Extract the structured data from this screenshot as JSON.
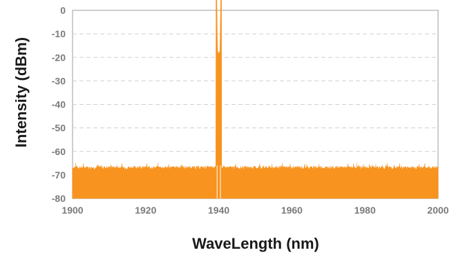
{
  "chart_data": {
    "type": "area",
    "title": "",
    "xlabel": "WaveLength (nm)",
    "ylabel": "Intensity (dBm)",
    "xlim": [
      1900,
      2000
    ],
    "ylim": [
      -80,
      0
    ],
    "x_ticks": [
      1900,
      1920,
      1940,
      1960,
      1980,
      2000
    ],
    "y_ticks": [
      0,
      -10,
      -20,
      -30,
      -40,
      -50,
      -60,
      -70,
      -80
    ],
    "grid": "horizontal dashed",
    "legend": "none",
    "series": [
      {
        "color": "#f7931e",
        "noise_floor_dbm": -67,
        "peak": {
          "x": 1940,
          "y": -18.5
        },
        "x": [
          1900,
          1910,
          1920,
          1930,
          1938,
          1939.5,
          1940,
          1940.5,
          1942,
          1950,
          1960,
          1970,
          1980,
          1990,
          2000
        ],
        "y": [
          -67,
          -67,
          -67,
          -67,
          -67,
          -30,
          -18.5,
          -30,
          -67,
          -67,
          -67,
          -67,
          -67,
          -67,
          -67
        ]
      }
    ]
  }
}
